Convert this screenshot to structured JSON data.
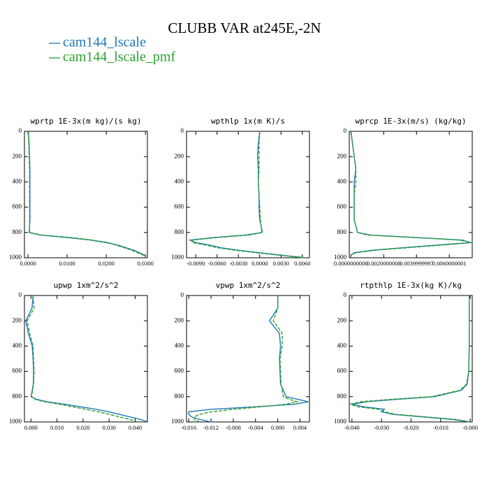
{
  "title": "CLUBB VAR at245E,-2N",
  "legend": [
    {
      "name": "cam144_lscale",
      "color": "#1f77b4",
      "line_style": "solid"
    },
    {
      "name": "cam144_lscale_pmf",
      "color": "#2ca02c",
      "line_style": "dashed"
    }
  ],
  "chart_data": [
    {
      "type": "line",
      "title": "wprtp  1E-3x(m kg)/(s kg)",
      "y": [
        0,
        100,
        200,
        300,
        400,
        500,
        600,
        700,
        750,
        800,
        820,
        840,
        860,
        880,
        900,
        920,
        940,
        960,
        980,
        1000
      ],
      "ylim": [
        1000,
        0
      ],
      "yticks": [
        0,
        200,
        400,
        600,
        800,
        1000
      ],
      "xlim": [
        -0.0009,
        0.0305
      ],
      "xticks": [
        {
          "value": 0,
          "label": "0.0000"
        },
        {
          "value": 0.01,
          "label": "0.0100"
        },
        {
          "value": 0.02,
          "label": "0.0200"
        },
        {
          "value": 0.03,
          "label": "0.0300"
        }
      ],
      "series": [
        {
          "values": [
            0.0001,
            0.0003,
            0.0004,
            0.0005,
            0.0005,
            0.0005,
            0.0005,
            0.0005,
            0.0004,
            0.0003,
            0.003,
            0.01,
            0.016,
            0.02,
            0.023,
            0.025,
            0.027,
            0.0285,
            0.0298,
            0.0302
          ]
        },
        {
          "values": [
            0.0001,
            0.0002,
            0.0003,
            0.0004,
            0.0004,
            0.0004,
            0.0004,
            0.0004,
            0.0004,
            0.0004,
            0.0035,
            0.011,
            0.0165,
            0.0205,
            0.0225,
            0.0245,
            0.0265,
            0.028,
            0.0295,
            0.0302
          ]
        }
      ]
    },
    {
      "type": "line",
      "title": "wpthlp  1x(m K)/s",
      "y": [
        0,
        100,
        200,
        300,
        400,
        500,
        600,
        700,
        750,
        800,
        820,
        840,
        860,
        880,
        900,
        920,
        940,
        960,
        980,
        1000
      ],
      "ylim": [
        1000,
        0
      ],
      "yticks": [
        0,
        200,
        400,
        600,
        800,
        1000
      ],
      "xlim": [
        -0.0103,
        0.007
      ],
      "xticks": [
        {
          "value": -0.009,
          "label": "-0.0090"
        },
        {
          "value": -0.006,
          "label": "-0.0060"
        },
        {
          "value": -0.003,
          "label": "-0.0030"
        },
        {
          "value": 0,
          "label": "0.0000"
        },
        {
          "value": 0.003,
          "label": "0.0030"
        },
        {
          "value": 0.006,
          "label": "0.0060"
        }
      ],
      "series": [
        {
          "values": [
            0.0,
            -0.0002,
            -0.0003,
            -0.0002,
            -0.0002,
            -0.0001,
            -0.0001,
            0.0,
            0.0002,
            0.0003,
            -0.002,
            -0.0065,
            -0.0098,
            -0.009,
            -0.007,
            -0.0055,
            -0.003,
            0.0,
            0.003,
            0.0065
          ]
        },
        {
          "values": [
            0.0,
            -0.0001,
            -0.0001,
            -0.0001,
            -0.0002,
            -0.0001,
            0.0,
            0.0001,
            0.0002,
            0.0004,
            -0.0015,
            -0.006,
            -0.0095,
            -0.0095,
            -0.0075,
            -0.006,
            -0.0035,
            -0.0005,
            0.0028,
            0.0062
          ]
        }
      ]
    },
    {
      "type": "line",
      "title": "wprcp  1E-3x(m/s) (kg/kg)",
      "y": [
        0,
        100,
        200,
        300,
        400,
        500,
        600,
        700,
        750,
        800,
        820,
        840,
        860,
        880,
        900,
        920,
        940,
        960,
        980,
        1000
      ],
      "ylim": [
        1000,
        0
      ],
      "yticks": [
        0,
        200,
        400,
        600,
        800,
        1000
      ],
      "xlim": [
        -0.0001,
        0.0074
      ],
      "xticks": [
        {
          "value": 0,
          "label": "0.0000000000"
        },
        {
          "value": 0.002,
          "label": "0.0020000000"
        },
        {
          "value": 0.0039999997,
          "label": "0.0039999997"
        },
        {
          "value": 0.0060000001,
          "label": "0.0060000001"
        }
      ],
      "series": [
        {
          "values": [
            0.0,
            0.0001,
            0.0002,
            0.0003,
            0.0002,
            0.0002,
            0.0002,
            0.0002,
            0.0003,
            0.0004,
            0.0012,
            0.004,
            0.0068,
            0.0073,
            0.0052,
            0.0032,
            0.0013,
            0.0002,
            0.0,
            0.0
          ]
        },
        {
          "values": [
            0.0,
            0.0001,
            0.0002,
            0.0003,
            0.0003,
            0.0002,
            0.0002,
            0.0002,
            0.0003,
            0.0004,
            0.001,
            0.0038,
            0.0066,
            0.0074,
            0.0055,
            0.0035,
            0.0015,
            0.0003,
            0.0,
            0.0
          ]
        }
      ]
    },
    {
      "type": "line",
      "title": "upwp  1xm^2/s^2",
      "y": [
        0,
        100,
        200,
        300,
        400,
        500,
        600,
        700,
        750,
        800,
        820,
        840,
        860,
        880,
        900,
        920,
        940,
        960,
        980,
        1000
      ],
      "ylim": [
        1000,
        0
      ],
      "yticks": [
        0,
        200,
        400,
        600,
        800,
        1000
      ],
      "xlim": [
        -0.0025,
        0.0447
      ],
      "xticks": [
        {
          "value": 0,
          "label": "0.000"
        },
        {
          "value": 0.01,
          "label": "0.010"
        },
        {
          "value": 0.02,
          "label": "0.020"
        },
        {
          "value": 0.03,
          "label": "0.030"
        },
        {
          "value": 0.04,
          "label": "0.040"
        }
      ],
      "series": [
        {
          "values": [
            0.0008,
            0.0004,
            -0.002,
            -0.001,
            0.0005,
            0.0008,
            0.001,
            0.0009,
            0.0005,
            0.0,
            0.002,
            0.006,
            0.013,
            0.019,
            0.025,
            0.03,
            0.034,
            0.038,
            0.042,
            0.045
          ]
        },
        {
          "values": [
            0.0008,
            0.0012,
            -0.0015,
            -0.0005,
            0.0008,
            0.001,
            0.0012,
            0.001,
            0.0006,
            0.0002,
            0.0015,
            0.005,
            0.011,
            0.016,
            0.021,
            0.026,
            0.03,
            0.034,
            0.038,
            0.041
          ]
        }
      ]
    },
    {
      "type": "line",
      "title": "vpwp  1xm^2/s^2",
      "y": [
        0,
        100,
        200,
        300,
        400,
        500,
        600,
        700,
        750,
        800,
        820,
        840,
        860,
        880,
        900,
        920,
        940,
        960,
        980,
        1000
      ],
      "ylim": [
        1000,
        0
      ],
      "yticks": [
        0,
        200,
        400,
        600,
        800,
        1000
      ],
      "xlim": [
        -0.0164,
        0.0057
      ],
      "xticks": [
        {
          "value": -0.016,
          "label": "-0.016"
        },
        {
          "value": -0.012,
          "label": "-0.012"
        },
        {
          "value": -0.008,
          "label": "-0.008"
        },
        {
          "value": -0.004,
          "label": "-0.004"
        },
        {
          "value": 0,
          "label": "0.000"
        },
        {
          "value": 0.004,
          "label": "0.004"
        }
      ],
      "series": [
        {
          "values": [
            0.0,
            0.0,
            -0.0015,
            0.0003,
            0.0005,
            0.0003,
            0.0004,
            0.0005,
            0.001,
            0.0015,
            0.0035,
            0.0055,
            0.003,
            -0.004,
            -0.012,
            -0.016,
            -0.016,
            -0.0155,
            -0.014,
            -0.012
          ]
        },
        {
          "values": [
            0.0,
            0.0,
            -0.0008,
            0.0008,
            0.0008,
            0.0004,
            0.0005,
            0.0006,
            0.0008,
            0.001,
            0.002,
            0.0035,
            0.0015,
            -0.003,
            -0.008,
            -0.012,
            -0.014,
            -0.015,
            -0.015,
            -0.014
          ]
        }
      ]
    },
    {
      "type": "line",
      "title": "rtpthlp  1E-3x(kg K)/kg",
      "y": [
        0,
        100,
        200,
        300,
        400,
        500,
        600,
        700,
        750,
        800,
        820,
        840,
        860,
        880,
        900,
        920,
        940,
        960,
        980,
        1000
      ],
      "ylim": [
        1000,
        0
      ],
      "yticks": [
        0,
        200,
        400,
        600,
        800,
        1000
      ],
      "xlim": [
        -0.0409,
        0.0007
      ],
      "xticks": [
        {
          "value": -0.04,
          "label": "-0.040"
        },
        {
          "value": -0.03,
          "label": "-0.030"
        },
        {
          "value": -0.02,
          "label": "-0.020"
        },
        {
          "value": -0.01,
          "label": "-0.010"
        },
        {
          "value": 0,
          "label": "-0.000"
        }
      ],
      "series": [
        {
          "values": [
            -0.0003,
            -0.0003,
            -0.0003,
            -0.0003,
            -0.0003,
            -0.0004,
            -0.0005,
            -0.001,
            -0.003,
            -0.012,
            -0.024,
            -0.035,
            -0.04,
            -0.036,
            -0.029,
            -0.03,
            -0.026,
            -0.016,
            -0.006,
            0.0
          ]
        },
        {
          "values": [
            -0.0003,
            -0.0003,
            -0.0003,
            -0.0003,
            -0.0003,
            -0.0004,
            -0.0005,
            -0.0012,
            -0.0035,
            -0.013,
            -0.026,
            -0.037,
            -0.0405,
            -0.038,
            -0.031,
            -0.029,
            -0.025,
            -0.015,
            -0.005,
            0.0
          ]
        }
      ]
    }
  ]
}
